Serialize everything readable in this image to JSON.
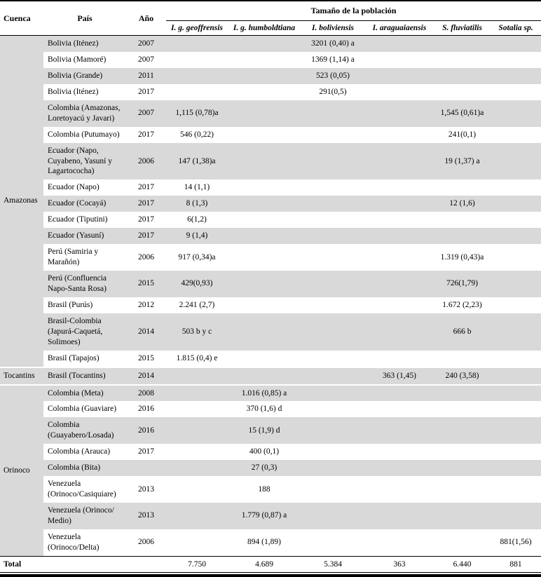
{
  "table": {
    "headers": {
      "cuenca": "Cuenca",
      "pais": "País",
      "ano": "Año",
      "poblacion": "Tamaño de la población",
      "species": [
        "I. g. geoffrensis",
        "I. g. humboldtiana",
        "I. boliviensis",
        "I. araguaiaensis",
        "S. fluviatilis",
        "Sotalia sp."
      ]
    },
    "groups": [
      {
        "cuenca": "Amazonas",
        "rows": [
          {
            "pais": "Bolivia (Iténez)",
            "ano": "2007",
            "values": [
              "",
              "",
              "3201 (0,40) a",
              "",
              "",
              ""
            ]
          },
          {
            "pais": "Bolivia (Mamoré)",
            "ano": "2007",
            "values": [
              "",
              "",
              "1369 (1,14) a",
              "",
              "",
              ""
            ]
          },
          {
            "pais": "Bolivia (Grande)",
            "ano": "2011",
            "values": [
              "",
              "",
              "523 (0,05)",
              "",
              "",
              ""
            ]
          },
          {
            "pais": "Bolivia (Iténez)",
            "ano": "2017",
            "values": [
              "",
              "",
              "291(0,5)",
              "",
              "",
              ""
            ]
          },
          {
            "pais": "Colombia (Amazonas, Loretoyacú y Javari)",
            "ano": "2007",
            "values": [
              "1,115 (0,78)a",
              "",
              "",
              "",
              "1,545 (0,61)a",
              ""
            ]
          },
          {
            "pais": "Colombia (Putumayo)",
            "ano": "2017",
            "values": [
              "546 (0,22)",
              "",
              "",
              "",
              "241(0,1)",
              ""
            ]
          },
          {
            "pais": "Ecuador (Napo, Cuyabeno, Yasuní y Lagartococha)",
            "ano": "2006",
            "values": [
              "147 (1,38)a",
              "",
              "",
              "",
              "19 (1,37) a",
              ""
            ]
          },
          {
            "pais": "Ecuador (Napo)",
            "ano": "2017",
            "values": [
              "14 (1,1)",
              "",
              "",
              "",
              "",
              ""
            ]
          },
          {
            "pais": "Ecuador (Cocayá)",
            "ano": "2017",
            "values": [
              "8 (1,3)",
              "",
              "",
              "",
              "12 (1,6)",
              ""
            ]
          },
          {
            "pais": "Ecuador (Tiputini)",
            "ano": "2017",
            "values": [
              "6(1,2)",
              "",
              "",
              "",
              "",
              ""
            ]
          },
          {
            "pais": "Ecuador (Yasuní)",
            "ano": "2017",
            "values": [
              "9 (1,4)",
              "",
              "",
              "",
              "",
              ""
            ]
          },
          {
            "pais": "Perú (Samiria y Marañón)",
            "ano": "2006",
            "values": [
              "917 (0,34)a",
              "",
              "",
              "",
              "1.319 (0,43)a",
              ""
            ]
          },
          {
            "pais": "Perú (Confluencia Napo-Santa Rosa)",
            "ano": "2015",
            "values": [
              "429(0,93)",
              "",
              "",
              "",
              "726(1,79)",
              ""
            ]
          },
          {
            "pais": "Brasil (Purús)",
            "ano": "2012",
            "values": [
              "2.241 (2,7)",
              "",
              "",
              "",
              "1.672 (2,23)",
              ""
            ]
          },
          {
            "pais": "Brasil-Colombia (Japurá-Caquetá, Solimoes)",
            "ano": "2014",
            "values": [
              "503 b y c",
              "",
              "",
              "",
              "666 b",
              ""
            ]
          },
          {
            "pais": "Brasil (Tapajos)",
            "ano": "2015",
            "values": [
              "1.815 (0,4) e",
              "",
              "",
              "",
              "",
              ""
            ]
          }
        ]
      },
      {
        "cuenca": "Tocantins",
        "rows": [
          {
            "pais": "Brasil (Tocantins)",
            "ano": "2014",
            "values": [
              "",
              "",
              "",
              "363 (1,45)",
              "240 (3,58)",
              ""
            ]
          }
        ]
      },
      {
        "cuenca": "Orinoco",
        "rows": [
          {
            "pais": "Colombia (Meta)",
            "ano": "2008",
            "values": [
              "",
              "1.016 (0,85) a",
              "",
              "",
              "",
              ""
            ]
          },
          {
            "pais": "Colombia (Guaviare)",
            "ano": "2016",
            "values": [
              "",
              "370 (1,6) d",
              "",
              "",
              "",
              ""
            ]
          },
          {
            "pais": "Colombia (Guayabero/Losada)",
            "ano": "2016",
            "values": [
              "",
              "15 (1,9) d",
              "",
              "",
              "",
              ""
            ]
          },
          {
            "pais": "Colombia (Arauca)",
            "ano": "2017",
            "values": [
              "",
              "400 (0,1)",
              "",
              "",
              "",
              ""
            ]
          },
          {
            "pais": "Colombia (Bita)",
            "ano": "",
            "values": [
              "",
              "27 (0,3)",
              "",
              "",
              "",
              ""
            ]
          },
          {
            "pais": "Venezuela (Orinoco/Casiquiare)",
            "ano": "2013",
            "values": [
              "",
              "188",
              "",
              "",
              "",
              ""
            ]
          },
          {
            "pais": "Venezuela (Orinoco/ Medio)",
            "ano": "2013",
            "values": [
              "",
              "1.779 (0,87) a",
              "",
              "",
              "",
              ""
            ]
          },
          {
            "pais": "Venezuela (Orinoco/Delta)",
            "ano": "2006",
            "values": [
              "",
              "894 (1,89)",
              "",
              "",
              "",
              "881(1,56)"
            ]
          }
        ]
      }
    ],
    "total": {
      "label": "Total",
      "values": [
        "7.750",
        "4.689",
        "5.384",
        "363",
        "6.440",
        "881"
      ]
    },
    "colors": {
      "row_shade": "#d9d9d9",
      "rule": "#000000"
    }
  }
}
